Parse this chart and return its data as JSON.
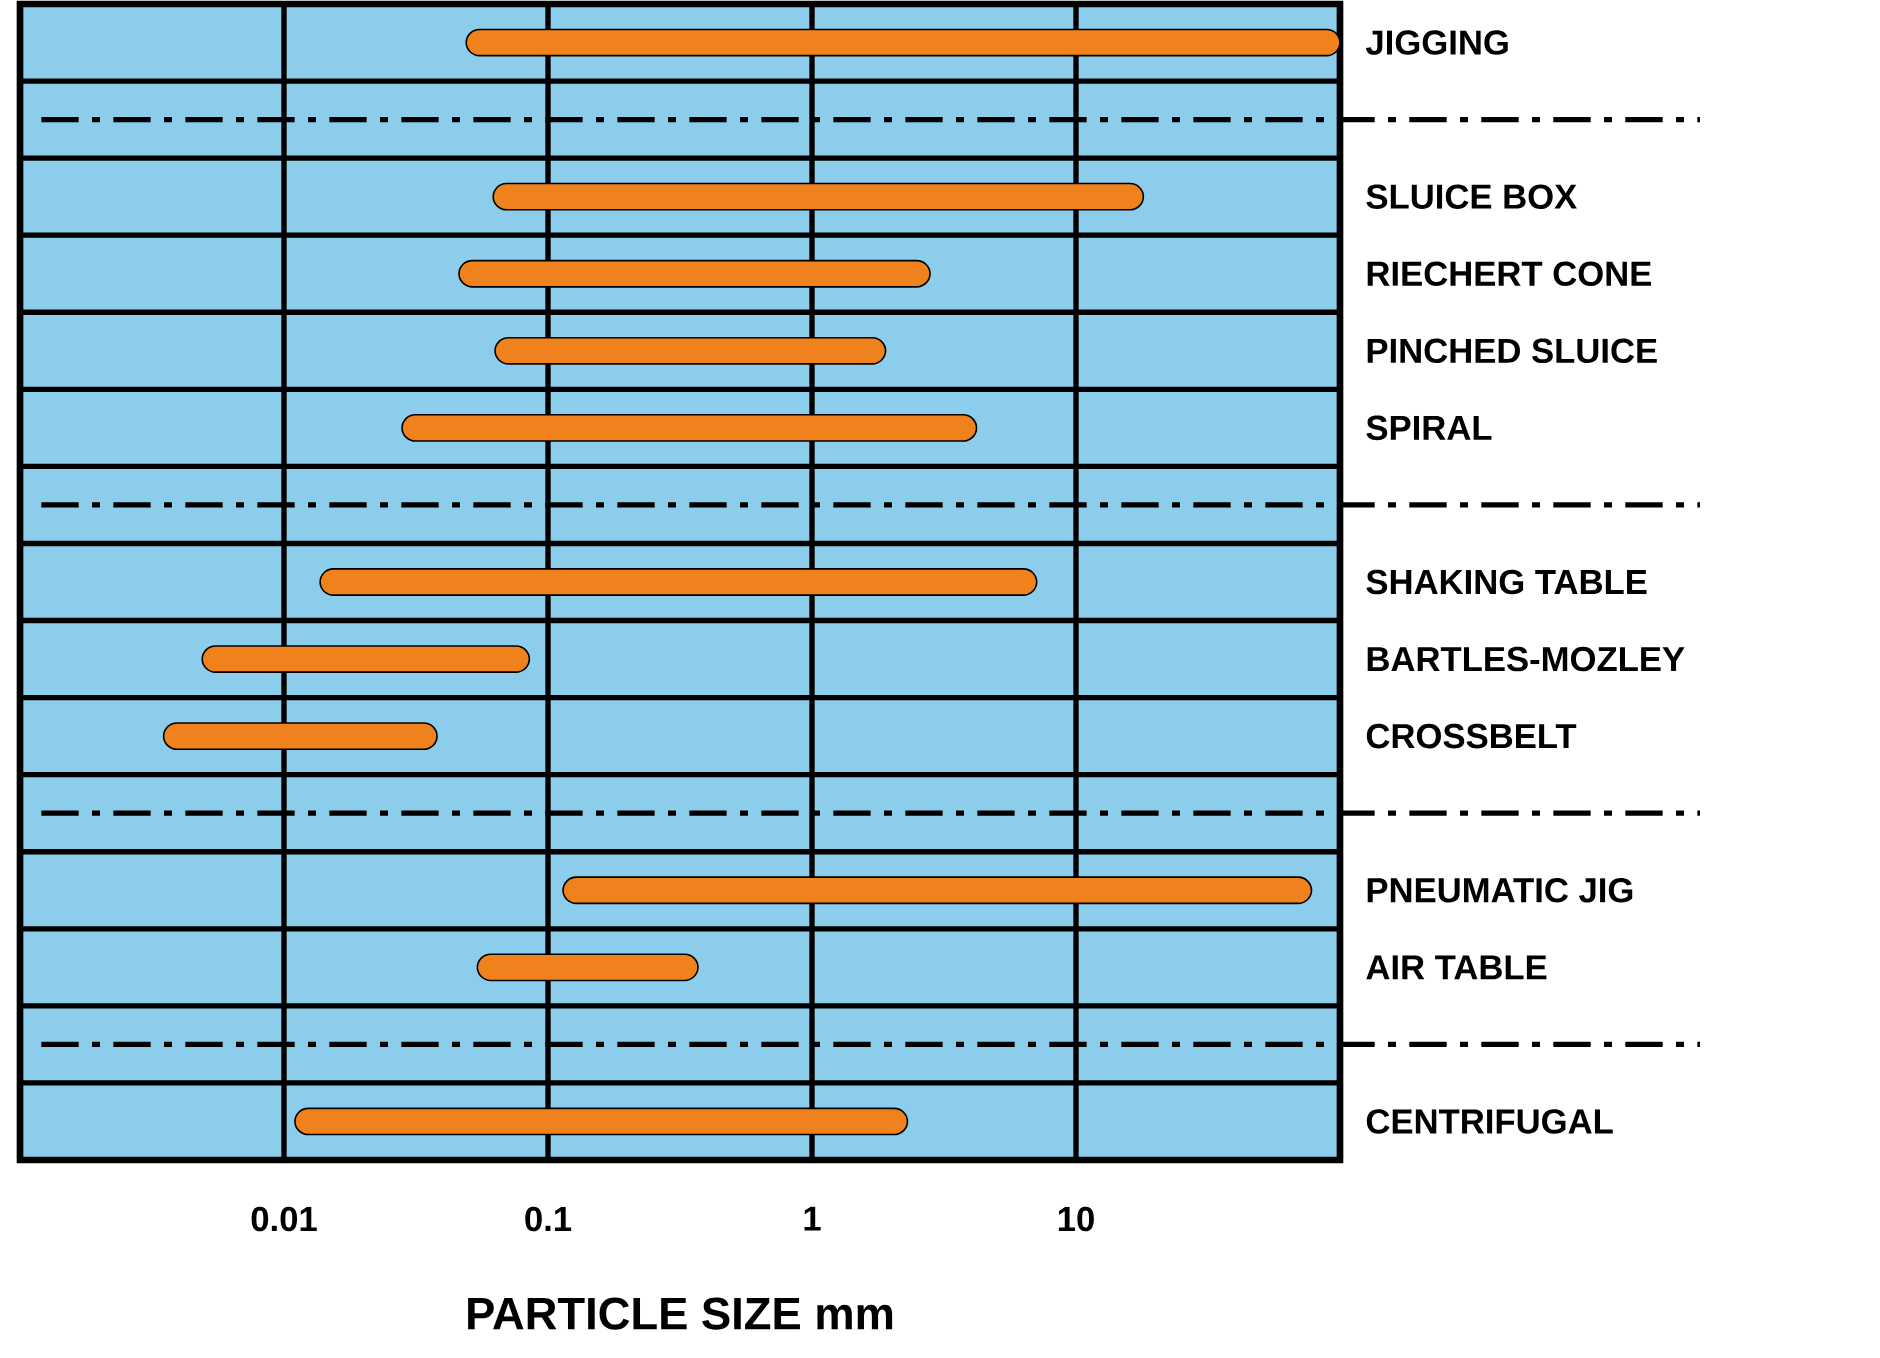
{
  "chart_data": {
    "type": "bar",
    "orientation": "horizontal",
    "log": "x",
    "grid": true,
    "xlabel": "PARTICLE SIZE mm",
    "categories": [
      "JIGGING",
      null,
      "SLUICE BOX",
      "RIECHERT CONE",
      "PINCHED SLUICE",
      "SPIRAL",
      null,
      "SHAKING TABLE",
      "BARTLES-MOZLEY",
      "CROSSBELT",
      null,
      "PNEUMATIC JIG",
      "AIR TABLE",
      null,
      "CENTRIFUGAL"
    ],
    "base": [
      0.049,
      null,
      0.062,
      0.046,
      0.063,
      0.028,
      null,
      0.0137,
      0.0049,
      0.0035,
      null,
      0.114,
      0.054,
      null,
      0.011
    ],
    "values": [
      99.95,
      null,
      17.94,
      2.754,
      1.837,
      4.172,
      null,
      7.086,
      0.0801,
      0.0345,
      null,
      77.89,
      0.316,
      null,
      2.289
    ],
    "color": "#f0821e",
    "xlim": [
      0.001,
      100
    ],
    "xticks": [
      0.01,
      0.1,
      1,
      10
    ]
  }
}
